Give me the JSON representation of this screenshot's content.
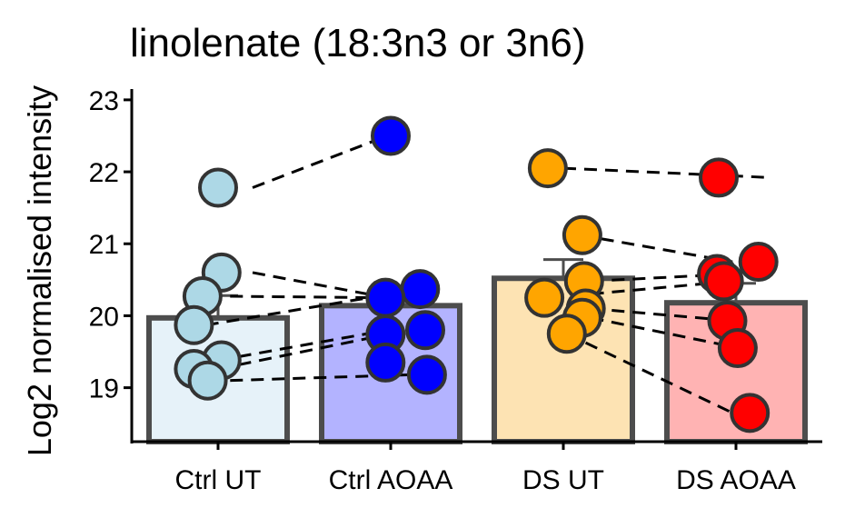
{
  "chart_data": {
    "type": "bar",
    "title": "linolenate (18:3n3 or 3n6)",
    "xlabel": "",
    "ylabel": "Log2 normalised intensity",
    "ylim": [
      18.25,
      23.15
    ],
    "yticks": [
      19,
      20,
      21,
      22,
      23
    ],
    "grid": false,
    "legend": "none",
    "categories": [
      "Ctrl UT",
      "Ctrl AOAA",
      "DS UT",
      "DS AOAA"
    ],
    "bar_values": [
      19.97,
      20.14,
      20.52,
      20.18
    ],
    "error_upper": [
      20.28,
      20.4,
      20.78,
      20.45
    ],
    "bar_fill_colors": [
      "#e6f2f9",
      "#b3b3ff",
      "#fde3b3",
      "#ffb3b3"
    ],
    "point_colors": [
      "#add8e6",
      "#0000ff",
      "#ffa500",
      "#ff0000"
    ],
    "bar_edge_color": "#4d4d4d",
    "points": [
      [
        21.78,
        20.6,
        20.27,
        19.87,
        19.38,
        19.26,
        19.1
      ],
      [
        22.5,
        20.37,
        20.25,
        19.8,
        19.74,
        19.35,
        19.18
      ],
      [
        22.05,
        21.12,
        20.48,
        20.25,
        20.1,
        19.97,
        19.75
      ],
      [
        21.92,
        20.75,
        20.58,
        20.48,
        19.93,
        19.55,
        18.65
      ]
    ],
    "paired_lines": [
      [
        21.78,
        22.5
      ],
      [
        20.6,
        20.25
      ],
      [
        20.27,
        20.25
      ],
      [
        19.87,
        20.37
      ],
      [
        19.38,
        19.8
      ],
      [
        19.26,
        19.74
      ],
      [
        19.1,
        19.18
      ],
      [
        22.05,
        21.92
      ],
      [
        21.12,
        20.75
      ],
      [
        20.48,
        20.58
      ],
      [
        20.25,
        20.48
      ],
      [
        20.1,
        19.93
      ],
      [
        19.97,
        19.55
      ],
      [
        19.75,
        18.65
      ]
    ],
    "paired_groups": [
      [
        0,
        1
      ],
      [
        0,
        1
      ],
      [
        0,
        1
      ],
      [
        0,
        1
      ],
      [
        0,
        1
      ],
      [
        0,
        1
      ],
      [
        0,
        1
      ],
      [
        2,
        3
      ],
      [
        2,
        3
      ],
      [
        2,
        3
      ],
      [
        2,
        3
      ],
      [
        2,
        3
      ],
      [
        2,
        3
      ],
      [
        2,
        3
      ]
    ],
    "point_x_jitter": [
      [
        0,
        0.02,
        -0.09,
        -0.14,
        0.02,
        -0.14,
        -0.06
      ],
      [
        0,
        0.17,
        -0.03,
        0.2,
        -0.03,
        -0.03,
        0.21
      ],
      [
        -0.09,
        0.11,
        0.12,
        -0.11,
        0.13,
        0.11,
        0.02
      ],
      [
        -0.1,
        0.13,
        -0.11,
        -0.07,
        -0.05,
        0.01,
        0.08
      ]
    ],
    "pair_x_offsets": [
      [
        0.2,
        -0.02
      ],
      [
        0.2,
        -0.02
      ],
      [
        0.07,
        -0.02
      ],
      [
        -0.07,
        0.17
      ],
      [
        0.0,
        -0.02
      ],
      [
        0.0,
        -0.02
      ],
      [
        0.07,
        0.12
      ],
      [
        0.0,
        0.2
      ],
      [
        0.1,
        -0.02
      ],
      [
        0.16,
        -0.02
      ],
      [
        -0.08,
        -0.02
      ],
      [
        0.16,
        -0.02
      ],
      [
        0.16,
        0.02
      ],
      [
        0.02,
        -0.02
      ]
    ]
  }
}
